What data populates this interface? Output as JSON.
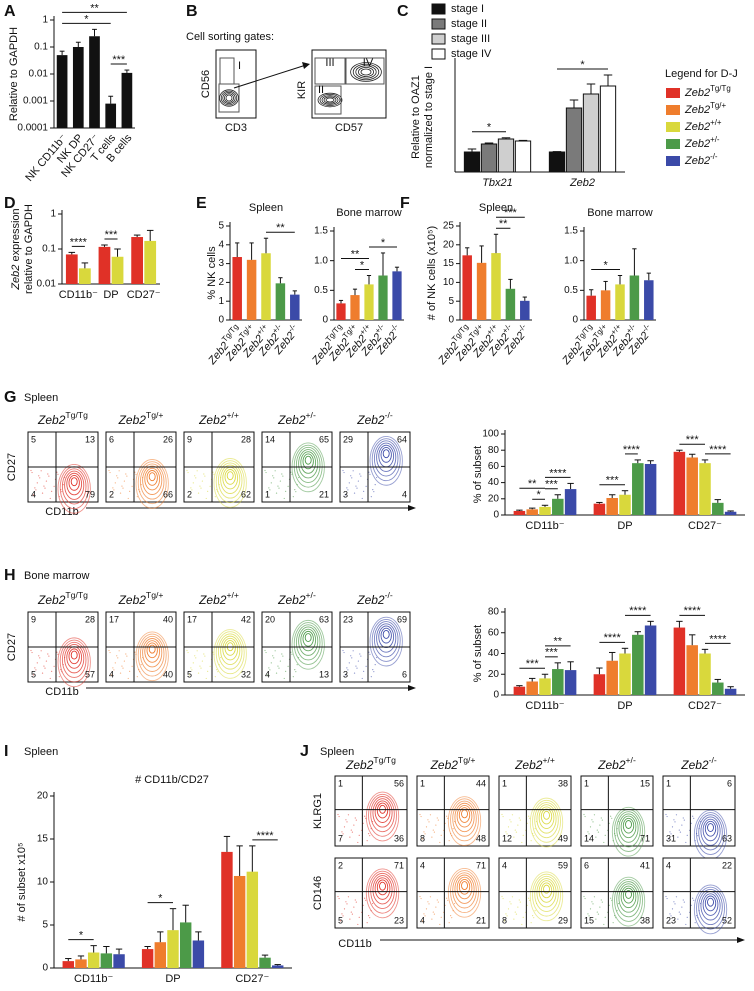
{
  "chart_data": [
    {
      "type": "bar",
      "panel": "A",
      "categories": [
        "NK CD11b⁻",
        "NK DP",
        "NK CD27⁻",
        "T cells",
        "B cells"
      ],
      "values": [
        0.05,
        0.1,
        0.25,
        0.0008,
        0.011
      ],
      "errors": [
        0.02,
        0.05,
        0.2,
        0.0007,
        0.003
      ],
      "color": "#111111",
      "log": true,
      "ylim": [
        0.0001,
        1
      ],
      "yticks": [
        0.0001,
        0.001,
        0.01,
        0.1,
        1
      ],
      "ylabel": "Relative to GAPDH",
      "significance": [
        {
          "label": "***",
          "bars": [
            3,
            4
          ]
        },
        {
          "label": "*",
          "bars": [
            0,
            3
          ]
        },
        {
          "label": "**",
          "bars": [
            0,
            4
          ]
        }
      ]
    },
    {
      "type": "grouped_bar",
      "panel": "C",
      "categories": [
        "Tbx21",
        "Zeb2"
      ],
      "series": [
        {
          "name": "stage I",
          "color": "#111111",
          "values": [
            1,
            1
          ],
          "errors": [
            0.15,
            0.02
          ]
        },
        {
          "name": "stage II",
          "color": "#7a7a7a",
          "values": [
            1.4,
            3.2
          ],
          "errors": [
            0.05,
            0.4
          ]
        },
        {
          "name": "stage III",
          "color": "#cfcfcf",
          "values": [
            1.65,
            3.9
          ],
          "errors": [
            0.06,
            0.5
          ]
        },
        {
          "name": "stage IV",
          "color": "#ffffff",
          "values": [
            1.55,
            4.3
          ],
          "errors": [
            0.03,
            0.55
          ]
        }
      ],
      "ylim": [
        0,
        5.5
      ],
      "ylabel": [
        {
          "text": "Relative to OAZ1"
        },
        {
          "text": "normalized to stage I"
        }
      ],
      "significance": [
        {
          "label": "*",
          "group": 0,
          "bars": [
            0,
            2
          ]
        },
        {
          "label": "*",
          "group": 1,
          "bars": [
            0,
            3
          ]
        }
      ]
    },
    {
      "type": "grouped_bar",
      "panel": "D",
      "categories": [
        "CD11b⁻",
        "DP",
        "CD27⁻"
      ],
      "series": [
        {
          "color": "#e03127",
          "values": [
            0.07,
            0.115,
            0.22
          ],
          "errors": [
            0.01,
            0.015,
            0.03
          ]
        },
        {
          "color": "#d9d83c",
          "values": [
            0.028,
            0.06,
            0.17
          ],
          "errors": [
            0.012,
            0.04,
            0.17
          ]
        }
      ],
      "log": true,
      "ylim": [
        0.01,
        1
      ],
      "yticks": [
        0.01,
        0.1,
        1
      ],
      "ylabel": [
        {
          "italic": "Zeb2",
          "text": " expression"
        },
        {
          "text": "relative to GAPDH"
        }
      ],
      "significance": [
        {
          "label": "****",
          "group": 0,
          "bars": [
            0,
            1
          ]
        },
        {
          "label": "***",
          "group": 1,
          "bars": [
            0,
            1
          ]
        }
      ]
    },
    {
      "type": "bar",
      "panel": "E",
      "title": "Spleen",
      "categories": [
        {
          "gene": "Zeb2",
          "sup": "Tg/Tg"
        },
        {
          "gene": "Zeb2",
          "sup": "Tg/+"
        },
        {
          "gene": "Zeb2",
          "sup": "+/+"
        },
        {
          "gene": "Zeb2",
          "sup": "+/-"
        },
        {
          "gene": "Zeb2",
          "sup": "-/-"
        }
      ],
      "values": [
        3.35,
        3.2,
        3.55,
        1.95,
        1.35
      ],
      "errors": [
        0.75,
        0.9,
        0.8,
        0.3,
        0.2
      ],
      "colors": [
        "#e03127",
        "#ef7d2d",
        "#d9d83c",
        "#4c9a48",
        "#3b4aa8"
      ],
      "ylim": [
        0,
        5
      ],
      "yticks": [
        0,
        1,
        2,
        3,
        4,
        5
      ],
      "ylabel": "% NK cells",
      "significance": [
        {
          "label": "**",
          "bars": [
            2,
            4
          ]
        }
      ]
    },
    {
      "type": "bar",
      "title": "Bone marrow",
      "categories": [
        {
          "gene": "Zeb2",
          "sup": "Tg/Tg"
        },
        {
          "gene": "Zeb2",
          "sup": "Tg/+"
        },
        {
          "gene": "Zeb2",
          "sup": "+/+"
        },
        {
          "gene": "Zeb2",
          "sup": "+/-"
        },
        {
          "gene": "Zeb2",
          "sup": "-/-"
        }
      ],
      "values": [
        0.28,
        0.42,
        0.6,
        0.75,
        0.82
      ],
      "errors": [
        0.05,
        0.1,
        0.15,
        0.38,
        0.07
      ],
      "colors": [
        "#e03127",
        "#ef7d2d",
        "#d9d83c",
        "#4c9a48",
        "#3b4aa8"
      ],
      "ylim": [
        0,
        1.5
      ],
      "yticks": [
        0,
        0.5,
        {
          "value": 1,
          "label": "1.0"
        },
        1.5
      ],
      "significance": [
        {
          "label": "*",
          "bars": [
            1,
            2
          ]
        },
        {
          "label": "**",
          "bars": [
            0,
            2
          ]
        },
        {
          "label": "*",
          "bars": [
            2,
            4
          ]
        }
      ]
    },
    {
      "type": "bar",
      "panel": "F",
      "title": "Spleen",
      "categories": [
        {
          "gene": "Zeb2",
          "sup": "Tg/Tg"
        },
        {
          "gene": "Zeb2",
          "sup": "Tg/+"
        },
        {
          "gene": "Zeb2",
          "sup": "+/+"
        },
        {
          "gene": "Zeb2",
          "sup": "+/-"
        },
        {
          "gene": "Zeb2",
          "sup": "-/-"
        }
      ],
      "values": [
        17.2,
        15.2,
        17.8,
        8.3,
        5.1
      ],
      "errors": [
        2,
        4.5,
        5,
        2.5,
        1
      ],
      "colors": [
        "#e03127",
        "#ef7d2d",
        "#d9d83c",
        "#4c9a48",
        "#3b4aa8"
      ],
      "ylim": [
        0,
        25
      ],
      "yticks": [
        0,
        5,
        10,
        15,
        20,
        25
      ],
      "ylabel": "# of NK cells (x10⁵)",
      "significance": [
        {
          "label": "**",
          "bars": [
            2,
            3
          ]
        },
        {
          "label": "***",
          "bars": [
            2,
            4
          ]
        }
      ]
    },
    {
      "type": "bar",
      "title": "Bone marrow",
      "categories": [
        {
          "gene": "Zeb2",
          "sup": "Tg/Tg"
        },
        {
          "gene": "Zeb2",
          "sup": "Tg/+"
        },
        {
          "gene": "Zeb2",
          "sup": "+/+"
        },
        {
          "gene": "Zeb2",
          "sup": "+/-"
        },
        {
          "gene": "Zeb2",
          "sup": "-/-"
        }
      ],
      "values": [
        0.41,
        0.5,
        0.6,
        0.75,
        0.67
      ],
      "errors": [
        0.1,
        0.15,
        0.15,
        0.45,
        0.12
      ],
      "colors": [
        "#e03127",
        "#ef7d2d",
        "#d9d83c",
        "#4c9a48",
        "#3b4aa8"
      ],
      "ylim": [
        0,
        1.5
      ],
      "yticks": [
        0,
        0.5,
        {
          "value": 1,
          "label": "1.0"
        },
        1.5
      ],
      "significance": [
        {
          "label": "*",
          "bars": [
            0,
            2
          ]
        }
      ]
    },
    {
      "type": "grouped_bar",
      "categories": [
        "CD11b⁻",
        "DP",
        "CD27⁻"
      ],
      "series": [
        {
          "color": "#e03127",
          "values": [
            5,
            14,
            78
          ],
          "errors": [
            1,
            1.5,
            2
          ]
        },
        {
          "color": "#ef7d2d",
          "values": [
            7,
            21,
            71
          ],
          "errors": [
            1.5,
            4,
            4
          ]
        },
        {
          "color": "#d9d83c",
          "values": [
            10,
            25,
            64
          ],
          "errors": [
            2,
            5,
            4
          ]
        },
        {
          "color": "#4c9a48",
          "values": [
            20,
            64,
            15
          ],
          "errors": [
            5,
            4,
            4
          ]
        },
        {
          "color": "#3b4aa8",
          "values": [
            32,
            63,
            4
          ],
          "errors": [
            7,
            4,
            1
          ]
        }
      ],
      "ylim": [
        0,
        100
      ],
      "yticks": [
        0,
        20,
        40,
        60,
        80,
        100
      ],
      "ylabel": "% of subset",
      "significance": [
        {
          "label": "*",
          "group": 0,
          "bars": [
            1,
            2
          ]
        },
        {
          "label": "**",
          "group": 0,
          "bars": [
            0,
            2
          ]
        },
        {
          "label": "***",
          "group": 0,
          "bars": [
            2,
            3
          ]
        },
        {
          "label": "****",
          "group": 0,
          "bars": [
            2,
            4
          ]
        },
        {
          "label": "***",
          "group": 1,
          "bars": [
            0,
            2
          ]
        },
        {
          "label": "****",
          "group": 1,
          "bars": [
            2,
            3
          ]
        },
        {
          "label": "***",
          "group": 2,
          "bars": [
            0,
            2
          ]
        },
        {
          "label": "****",
          "group": 2,
          "bars": [
            2,
            4
          ]
        }
      ]
    },
    {
      "type": "grouped_bar",
      "categories": [
        "CD11b⁻",
        "DP",
        "CD27⁻"
      ],
      "series": [
        {
          "color": "#e03127",
          "values": [
            8,
            20,
            65
          ],
          "errors": [
            1,
            6,
            6
          ]
        },
        {
          "color": "#ef7d2d",
          "values": [
            13,
            33,
            48
          ],
          "errors": [
            3,
            8,
            10
          ]
        },
        {
          "color": "#d9d83c",
          "values": [
            16,
            40,
            40
          ],
          "errors": [
            4,
            5,
            4
          ]
        },
        {
          "color": "#4c9a48",
          "values": [
            25,
            58,
            12
          ],
          "errors": [
            6,
            3,
            3
          ]
        },
        {
          "color": "#3b4aa8",
          "values": [
            24,
            67,
            6
          ],
          "errors": [
            8,
            4,
            2
          ]
        }
      ],
      "ylim": [
        0,
        80
      ],
      "yticks": [
        0,
        20,
        40,
        60,
        80
      ],
      "ylabel": "% of subset",
      "significance": [
        {
          "label": "***",
          "group": 0,
          "bars": [
            0,
            2
          ]
        },
        {
          "label": "***",
          "group": 0,
          "bars": [
            2,
            3
          ]
        },
        {
          "label": "**",
          "group": 0,
          "bars": [
            2,
            4
          ]
        },
        {
          "label": "****",
          "group": 1,
          "bars": [
            0,
            2
          ]
        },
        {
          "label": "****",
          "group": 1,
          "bars": [
            2,
            4
          ]
        },
        {
          "label": "****",
          "group": 2,
          "bars": [
            0,
            2
          ]
        },
        {
          "label": "****",
          "group": 2,
          "bars": [
            2,
            4
          ]
        }
      ]
    },
    {
      "type": "grouped_bar",
      "panel": "I",
      "title": "Spleen",
      "subtitle": "# CD11b/CD27",
      "categories": [
        "CD11b⁻",
        "DP",
        "CD27⁻"
      ],
      "series": [
        {
          "color": "#e03127",
          "values": [
            0.8,
            2.2,
            13.5
          ],
          "errors": [
            0.3,
            0.3,
            1.8
          ]
        },
        {
          "color": "#ef7d2d",
          "values": [
            1,
            3,
            10.7
          ],
          "errors": [
            0.4,
            1.2,
            3.5
          ]
        },
        {
          "color": "#d9d83c",
          "values": [
            1.8,
            4.4,
            11.2
          ],
          "errors": [
            0.8,
            2.5,
            3
          ]
        },
        {
          "color": "#4c9a48",
          "values": [
            1.7,
            5.3,
            1.2
          ],
          "errors": [
            0.8,
            2,
            0.3
          ]
        },
        {
          "color": "#3b4aa8",
          "values": [
            1.6,
            3.2,
            0.3
          ],
          "errors": [
            0.6,
            1,
            0.1
          ]
        }
      ],
      "ylim": [
        0,
        20
      ],
      "yticks": [
        0,
        5,
        10,
        15,
        20
      ],
      "ylabel": "# of subset x10⁵",
      "significance": [
        {
          "label": "*",
          "group": 0,
          "bars": [
            0,
            2
          ]
        },
        {
          "label": "*",
          "group": 1,
          "bars": [
            0,
            2
          ]
        },
        {
          "label": "****",
          "group": 2,
          "bars": [
            2,
            4
          ]
        }
      ]
    }
  ],
  "legend": {
    "title": "Legend for D-J",
    "entries": [
      {
        "gene": "Zeb2",
        "sup": "Tg/Tg",
        "color": "#e03127"
      },
      {
        "gene": "Zeb2",
        "sup": "Tg/+",
        "color": "#ef7d2d"
      },
      {
        "gene": "Zeb2",
        "sup": "+/+",
        "color": "#d9d83c"
      },
      {
        "gene": "Zeb2",
        "sup": "+/-",
        "color": "#4c9a48"
      },
      {
        "gene": "Zeb2",
        "sup": "-/-",
        "color": "#3b4aa8"
      }
    ]
  },
  "sorting_gates": {
    "panel": "B",
    "title": "Cell sorting gates:",
    "plots": [
      {
        "xlabel": "CD3",
        "ylabel": "CD56",
        "gates": [
          "I"
        ]
      },
      {
        "xlabel": "CD57",
        "ylabel": "KIR",
        "gates": [
          "II",
          "III",
          "IV"
        ]
      }
    ]
  },
  "flow_plots": [
    {
      "panel": "G",
      "title": "Spleen",
      "xlabel": "CD11b",
      "rows": [
        {
          "ylabel": "CD27",
          "quadrants": [
            [
              5,
              13,
              4,
              79
            ],
            [
              6,
              26,
              2,
              66
            ],
            [
              9,
              28,
              2,
              62
            ],
            [
              14,
              65,
              1,
              21
            ],
            [
              29,
              64,
              3,
              4
            ]
          ]
        }
      ]
    },
    {
      "panel": "H",
      "title": "Bone marrow",
      "xlabel": "CD11b",
      "rows": [
        {
          "ylabel": "CD27",
          "quadrants": [
            [
              9,
              28,
              5,
              57
            ],
            [
              17,
              40,
              4,
              40
            ],
            [
              17,
              42,
              5,
              32
            ],
            [
              20,
              63,
              4,
              13
            ],
            [
              23,
              69,
              3,
              6
            ]
          ]
        }
      ]
    },
    {
      "panel": "J",
      "title": "Spleen",
      "xlabel": "CD11b",
      "rows": [
        {
          "ylabel": "KLRG1",
          "quadrants": [
            [
              1,
              56,
              7,
              36
            ],
            [
              1,
              44,
              8,
              48
            ],
            [
              1,
              38,
              12,
              49
            ],
            [
              1,
              15,
              14,
              71
            ],
            [
              1,
              6,
              31,
              63
            ]
          ]
        },
        {
          "ylabel": "CD146",
          "quadrants": [
            [
              2,
              71,
              5,
              23
            ],
            [
              4,
              71,
              4,
              21
            ],
            [
              4,
              59,
              8,
              29
            ],
            [
              6,
              41,
              15,
              38
            ],
            [
              4,
              22,
              23,
              52
            ]
          ]
        }
      ]
    }
  ]
}
